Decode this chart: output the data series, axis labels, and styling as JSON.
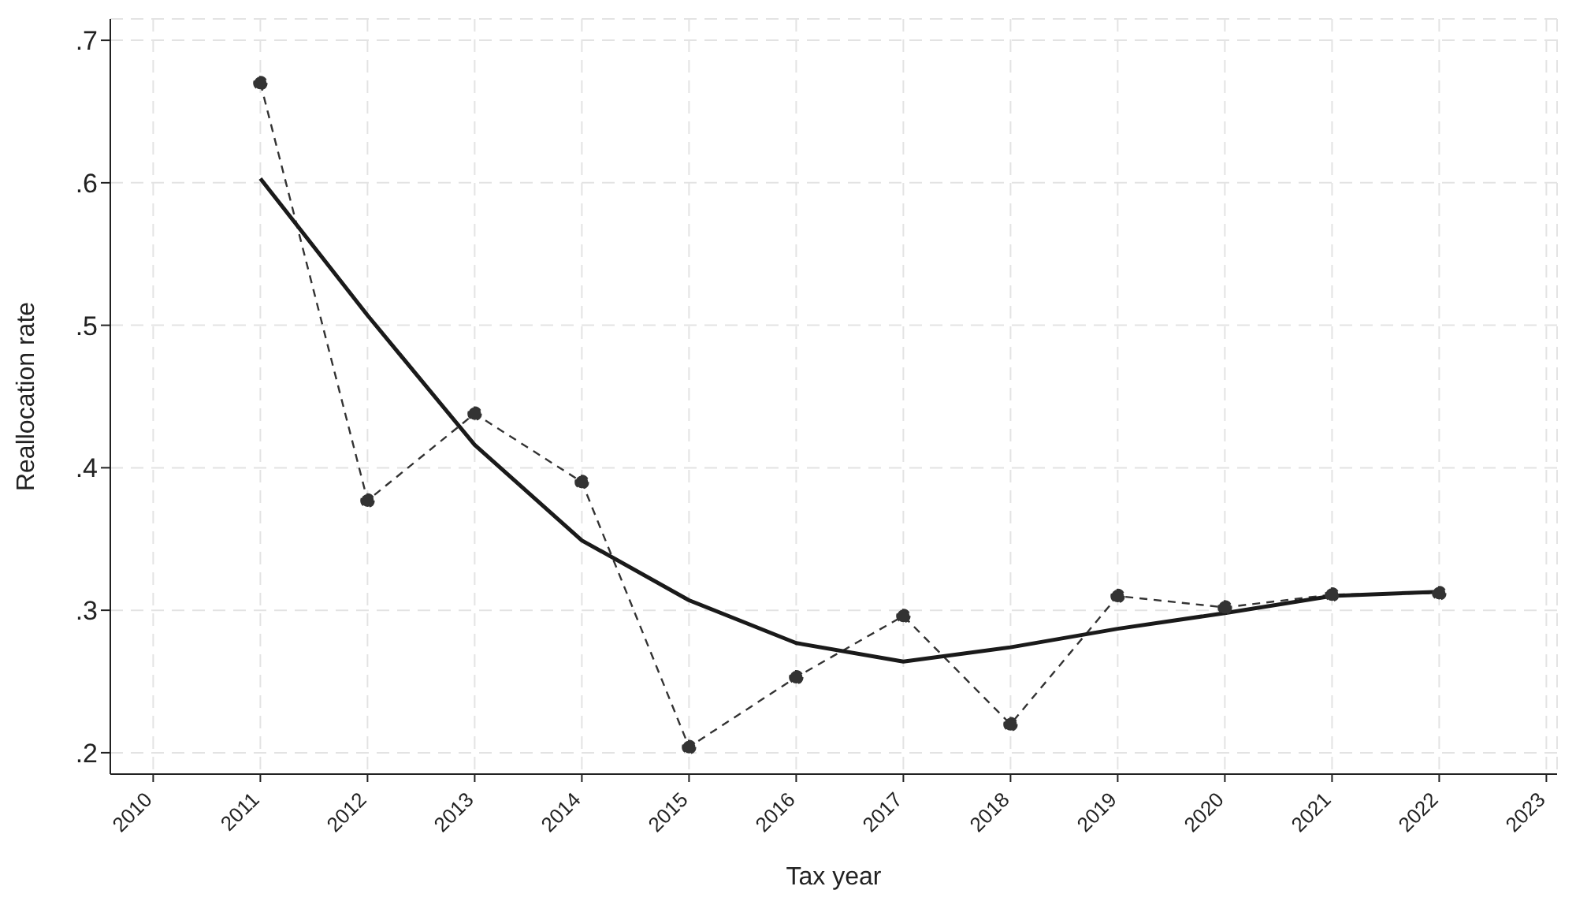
{
  "chart_data": {
    "type": "line",
    "xlabel": "Tax year",
    "ylabel": "Reallocation rate",
    "x": [
      2011,
      2012,
      2013,
      2014,
      2015,
      2016,
      2017,
      2018,
      2019,
      2020,
      2021,
      2022
    ],
    "series": [
      {
        "color": "#333333",
        "line_style": "dashed",
        "marker": "circle",
        "values": [
          0.67,
          0.377,
          0.438,
          0.39,
          0.204,
          0.253,
          0.296,
          0.22,
          0.31,
          0.302,
          0.311,
          0.312
        ]
      },
      {
        "color": "#1a1a1a",
        "line_style": "solid",
        "marker": "none",
        "values": [
          0.603,
          0.507,
          0.416,
          0.349,
          0.307,
          0.277,
          0.264,
          0.274,
          0.287,
          0.298,
          0.31,
          0.313
        ]
      }
    ],
    "xlim": [
      2009.6,
      2023.1
    ],
    "xticks": [
      2010,
      2011,
      2012,
      2013,
      2014,
      2015,
      2016,
      2017,
      2018,
      2019,
      2020,
      2021,
      2022,
      2023
    ],
    "ylim": [
      0.185,
      0.715
    ],
    "yticks": [
      {
        "value": 0.2,
        "label": ".2"
      },
      {
        "value": 0.3,
        "label": ".3"
      },
      {
        "value": 0.4,
        "label": ".4"
      },
      {
        "value": 0.5,
        "label": ".5"
      },
      {
        "value": 0.6,
        "label": ".6"
      },
      {
        "value": 0.7,
        "label": ".7"
      }
    ],
    "grid": true
  }
}
